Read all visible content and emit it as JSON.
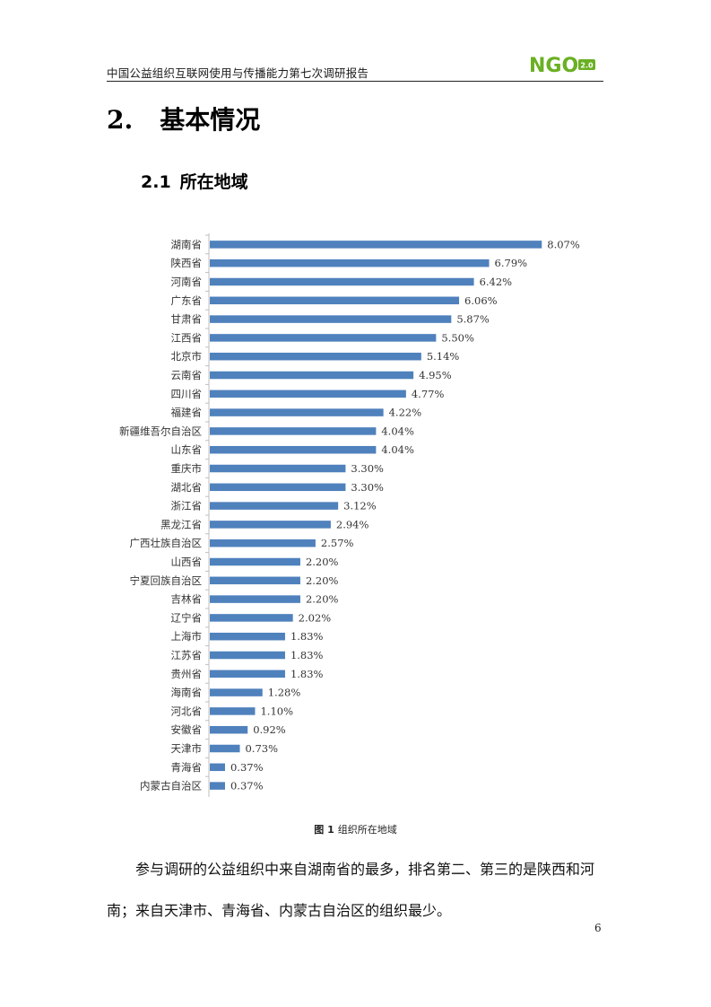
{
  "header": {
    "title": "中国公益组织互联网使用与传播能力第七次调研报告",
    "logo_text": "NGO",
    "logo_version": "2.0",
    "logo_color": "#6ab023"
  },
  "section": {
    "number": "2.",
    "title": "基本情况"
  },
  "subsection": {
    "number": "2.1",
    "title": "所在地域"
  },
  "chart_data": {
    "type": "bar",
    "orientation": "horizontal",
    "bar_color": "#4f81bd",
    "categories": [
      "湖南省",
      "陕西省",
      "河南省",
      "广东省",
      "甘肃省",
      "江西省",
      "北京市",
      "云南省",
      "四川省",
      "福建省",
      "新疆维吾尔自治区",
      "山东省",
      "重庆市",
      "湖北省",
      "浙江省",
      "黑龙江省",
      "广西壮族自治区",
      "山西省",
      "宁夏回族自治区",
      "吉林省",
      "辽宁省",
      "上海市",
      "江苏省",
      "贵州省",
      "海南省",
      "河北省",
      "安徽省",
      "天津市",
      "青海省",
      "内蒙古自治区"
    ],
    "values": [
      8.07,
      6.79,
      6.42,
      6.06,
      5.87,
      5.5,
      5.14,
      4.95,
      4.77,
      4.22,
      4.04,
      4.04,
      3.3,
      3.3,
      3.12,
      2.94,
      2.57,
      2.2,
      2.2,
      2.2,
      2.02,
      1.83,
      1.83,
      1.83,
      1.28,
      1.1,
      0.92,
      0.73,
      0.37,
      0.37
    ],
    "labels": [
      "8.07%",
      "6.79%",
      "6.42%",
      "6.06%",
      "5.87%",
      "5.50%",
      "5.14%",
      "4.95%",
      "4.77%",
      "4.22%",
      "4.04%",
      "4.04%",
      "3.30%",
      "3.30%",
      "3.12%",
      "2.94%",
      "2.57%",
      "2.20%",
      "2.20%",
      "2.20%",
      "2.02%",
      "1.83%",
      "1.83%",
      "1.83%",
      "1.28%",
      "1.10%",
      "0.92%",
      "0.73%",
      "0.37%",
      "0.37%"
    ],
    "xlim": [
      0,
      8.5
    ],
    "grid": false,
    "legend": "none"
  },
  "caption": {
    "figure": "图 1",
    "text": "组织所在地域"
  },
  "paragraph": "参与调研的公益组织中来自湖南省的最多，排名第二、第三的是陕西和河南；来自天津市、青海省、内蒙古自治区的组织最少。",
  "page_number": "6"
}
